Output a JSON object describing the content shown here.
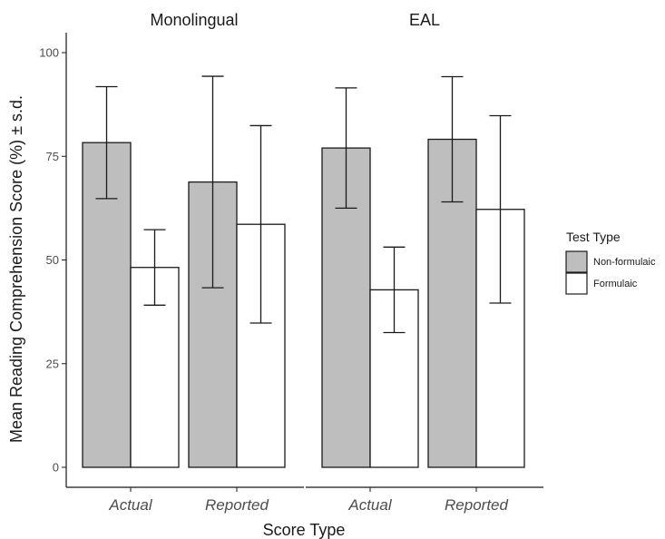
{
  "chart_data": {
    "type": "bar",
    "panels": [
      {
        "title": "Monolingual",
        "categories": [
          "Actual",
          "Reported"
        ],
        "series": [
          {
            "name": "Non-formulaic",
            "values": [
              78.3,
              68.8
            ],
            "sd": [
              13.5,
              25.5
            ]
          },
          {
            "name": "Formulaic",
            "values": [
              48.2,
              58.6
            ],
            "sd": [
              9.1,
              23.8
            ]
          }
        ]
      },
      {
        "title": "EAL",
        "categories": [
          "Actual",
          "Reported"
        ],
        "series": [
          {
            "name": "Non-formulaic",
            "values": [
              77.0,
              79.1
            ],
            "sd": [
              14.5,
              15.1
            ]
          },
          {
            "name": "Formulaic",
            "values": [
              42.8,
              62.2
            ],
            "sd": [
              10.3,
              22.6
            ]
          }
        ]
      }
    ],
    "xlabel": "Score Type",
    "ylabel": "Mean Reading Comprehension Score (%) ± s.d.",
    "ylim": [
      0,
      104
    ],
    "yticks": [
      0,
      25,
      50,
      75,
      100
    ],
    "legend": {
      "title": "Test Type",
      "placement": "right",
      "entries": [
        "Non-formulaic",
        "Formulaic"
      ]
    },
    "colors": {
      "Non-formulaic": "#bebebe",
      "Formulaic": "#ffffff",
      "outline": "#1a1a1a"
    },
    "grid": false
  }
}
